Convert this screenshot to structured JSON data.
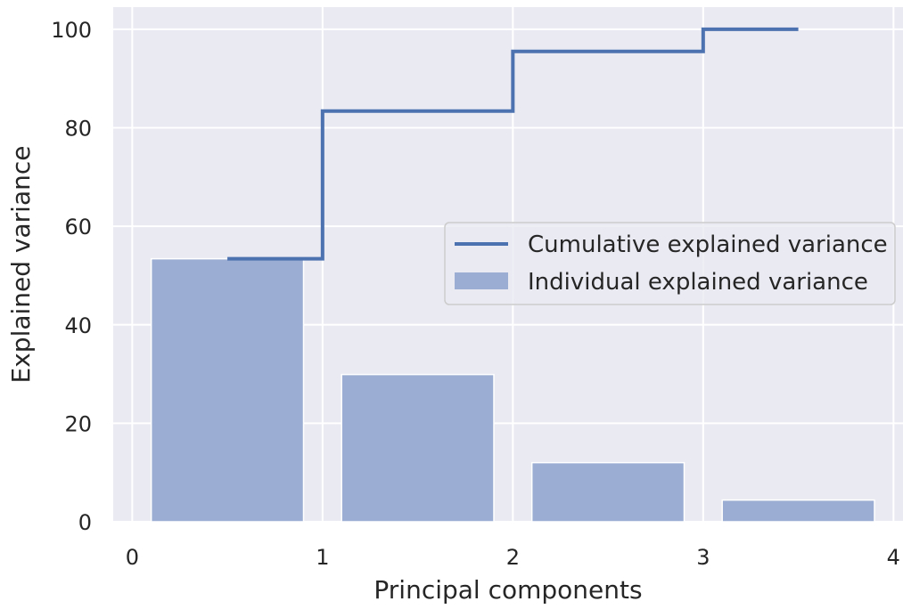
{
  "chart_data": {
    "type": "bar",
    "xlabel": "Principal components",
    "ylabel": "Explained variance",
    "xlim": [
      -0.1,
      4.05
    ],
    "ylim": [
      0,
      104.5
    ],
    "xticks": [
      0,
      1,
      2,
      3,
      4
    ],
    "yticks": [
      0,
      20,
      40,
      60,
      80,
      100
    ],
    "grid": true,
    "legend_position": "center-right",
    "colors": {
      "background": "#eaeaf2",
      "grid": "#ffffff",
      "line": "#4c72b0",
      "bar": "#9badd2"
    },
    "bars": {
      "name": "Individual explained variance",
      "x": [
        0.5,
        1.5,
        2.5,
        3.5
      ],
      "values": [
        53.4,
        29.9,
        12.0,
        4.4
      ],
      "width": 0.8
    },
    "line": {
      "name": "Cumulative explained variance",
      "style": "step",
      "x": [
        0.5,
        1.5,
        2.5,
        3.5
      ],
      "values": [
        53.4,
        83.4,
        95.5,
        100.0
      ]
    }
  }
}
